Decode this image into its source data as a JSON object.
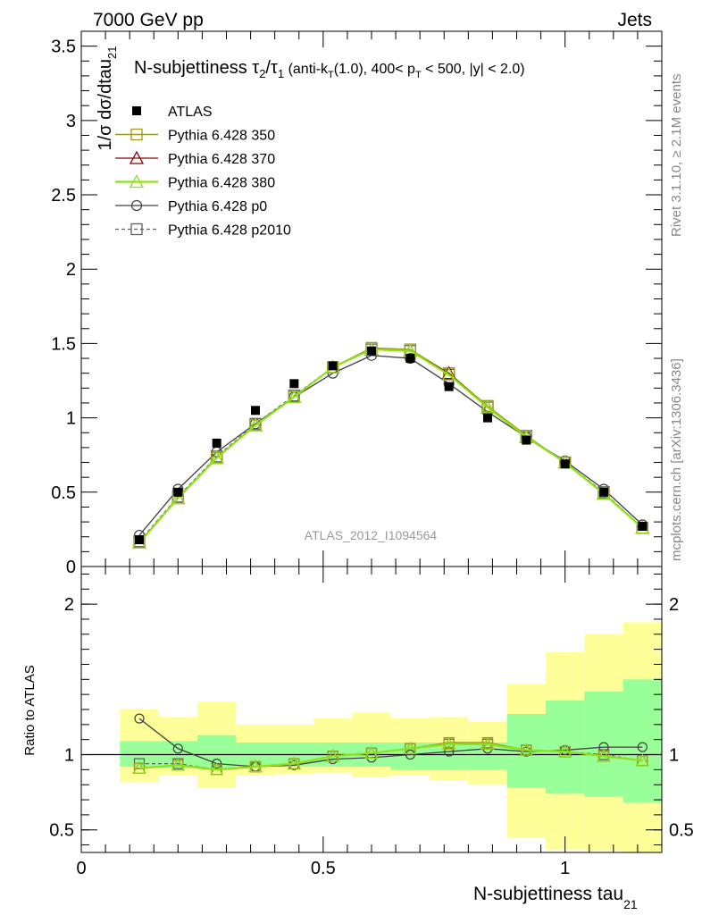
{
  "header": {
    "left": "7000 GeV pp",
    "right": "Jets"
  },
  "side": {
    "rivet": "Rivet 3.1.10, ≥ 2.1M events",
    "mcplots": "mcplots.cern.ch [arXiv:1306.3436]"
  },
  "colors": {
    "atlas": "#000000",
    "p350": "#9a9a1c",
    "p370": "#8b0000",
    "p380": "#8fe01a",
    "p0": "#404040",
    "p2010": "#606060",
    "band_green": "#99ff99",
    "band_yellow": "#ffff99"
  },
  "chart_data": [
    {
      "type": "line",
      "title_main": "N-subjettiness τ",
      "title_sub2": "2",
      "title_slash": "/τ",
      "title_sub1": "1",
      "title_paren1": " (anti-k",
      "title_subT": "T",
      "title_paren2": "(1.0), 400< p",
      "title_subT2": "T",
      "title_paren3": " < 500, |y| < 2.0)",
      "ylabel": "1/σ dσ/dtau",
      "ylabel_sub": "21",
      "watermark": "ATLAS_2012_I1094564",
      "xlim": [
        0,
        1.2
      ],
      "ylim": [
        0,
        3.6
      ],
      "y_ticks": [
        "0",
        "0.5",
        "1",
        "1.5",
        "2",
        "2.5",
        "3",
        "3.5"
      ],
      "x": [
        0.12,
        0.2,
        0.28,
        0.36,
        0.44,
        0.52,
        0.6,
        0.68,
        0.76,
        0.84,
        0.92,
        1.0,
        1.08,
        1.16
      ],
      "series": [
        {
          "name": "ATLAS",
          "values": [
            0.18,
            0.5,
            0.83,
            1.05,
            1.23,
            1.35,
            1.45,
            1.4,
            1.21,
            1.0,
            0.85,
            0.69,
            0.5,
            0.27
          ]
        },
        {
          "name": "Pythia 6.428 350",
          "values": [
            0.16,
            0.46,
            0.73,
            0.95,
            1.14,
            1.34,
            1.47,
            1.46,
            1.3,
            1.08,
            0.88,
            0.7,
            0.49,
            0.26
          ]
        },
        {
          "name": "Pythia 6.428 370",
          "values": [
            0.16,
            0.46,
            0.73,
            0.95,
            1.14,
            1.34,
            1.46,
            1.45,
            1.3,
            1.07,
            0.87,
            0.7,
            0.49,
            0.26
          ]
        },
        {
          "name": "Pythia 6.428 380",
          "values": [
            0.16,
            0.46,
            0.73,
            0.95,
            1.14,
            1.34,
            1.46,
            1.45,
            1.29,
            1.07,
            0.87,
            0.7,
            0.49,
            0.26
          ]
        },
        {
          "name": "Pythia 6.428 p0",
          "values": [
            0.21,
            0.52,
            0.77,
            0.96,
            1.14,
            1.3,
            1.42,
            1.4,
            1.23,
            1.04,
            0.87,
            0.71,
            0.52,
            0.28
          ]
        },
        {
          "name": "Pythia 6.428 p2010",
          "values": [
            0.17,
            0.47,
            0.74,
            0.96,
            1.15,
            1.34,
            1.46,
            1.45,
            1.29,
            1.07,
            0.87,
            0.7,
            0.5,
            0.26
          ]
        }
      ]
    },
    {
      "type": "line",
      "ylabel": "Ratio to ATLAS",
      "xlabel": "N-subjettiness tau",
      "xlabel_sub": "21",
      "xlim": [
        0,
        1.2
      ],
      "ylim": [
        0.35,
        2.25
      ],
      "x_ticks": [
        "0",
        "0.5",
        "1"
      ],
      "y_ticks": [
        "0.5",
        "1",
        "2"
      ],
      "bin_edges": [
        0.08,
        0.16,
        0.24,
        0.32,
        0.4,
        0.48,
        0.56,
        0.64,
        0.72,
        0.8,
        0.88,
        0.96,
        1.04,
        1.12,
        1.2
      ],
      "band_inner": [
        [
          0.92,
          1.09
        ],
        [
          0.91,
          1.09
        ],
        [
          0.9,
          1.13
        ],
        [
          0.92,
          1.08
        ],
        [
          0.92,
          1.08
        ],
        [
          0.92,
          1.08
        ],
        [
          0.92,
          1.08
        ],
        [
          0.9,
          1.08
        ],
        [
          0.9,
          1.08
        ],
        [
          0.9,
          1.08
        ],
        [
          0.78,
          1.27
        ],
        [
          0.74,
          1.36
        ],
        [
          0.72,
          1.42
        ],
        [
          0.68,
          1.5
        ]
      ],
      "band_outer": [
        [
          0.82,
          1.3
        ],
        [
          0.86,
          1.25
        ],
        [
          0.78,
          1.35
        ],
        [
          0.86,
          1.2
        ],
        [
          0.87,
          1.2
        ],
        [
          0.88,
          1.24
        ],
        [
          0.85,
          1.28
        ],
        [
          0.86,
          1.24
        ],
        [
          0.83,
          1.25
        ],
        [
          0.8,
          1.22
        ],
        [
          0.45,
          1.47
        ],
        [
          0.37,
          1.68
        ],
        [
          0.36,
          1.8
        ],
        [
          0.35,
          1.88
        ]
      ],
      "series": [
        {
          "name": "Pythia 6.428 350",
          "values": [
            0.91,
            0.93,
            0.9,
            0.92,
            0.94,
            0.99,
            1.01,
            1.04,
            1.08,
            1.08,
            1.03,
            1.02,
            0.99,
            0.96
          ]
        },
        {
          "name": "Pythia 6.428 370",
          "values": [
            0.91,
            0.93,
            0.9,
            0.92,
            0.94,
            0.99,
            1.01,
            1.04,
            1.07,
            1.07,
            1.03,
            1.02,
            0.99,
            0.96
          ]
        },
        {
          "name": "Pythia 6.428 380",
          "values": [
            0.91,
            0.93,
            0.9,
            0.92,
            0.94,
            0.99,
            1.01,
            1.04,
            1.07,
            1.07,
            1.03,
            1.02,
            0.99,
            0.96
          ]
        },
        {
          "name": "Pythia 6.428 p0",
          "values": [
            1.24,
            1.04,
            0.94,
            0.92,
            0.93,
            0.97,
            0.98,
            1.0,
            1.02,
            1.04,
            1.02,
            1.03,
            1.05,
            1.05
          ]
        },
        {
          "name": "Pythia 6.428 p2010",
          "values": [
            0.94,
            0.94,
            0.9,
            0.92,
            0.94,
            0.99,
            1.01,
            1.04,
            1.07,
            1.07,
            1.03,
            1.02,
            1.0,
            0.96
          ]
        }
      ]
    }
  ]
}
